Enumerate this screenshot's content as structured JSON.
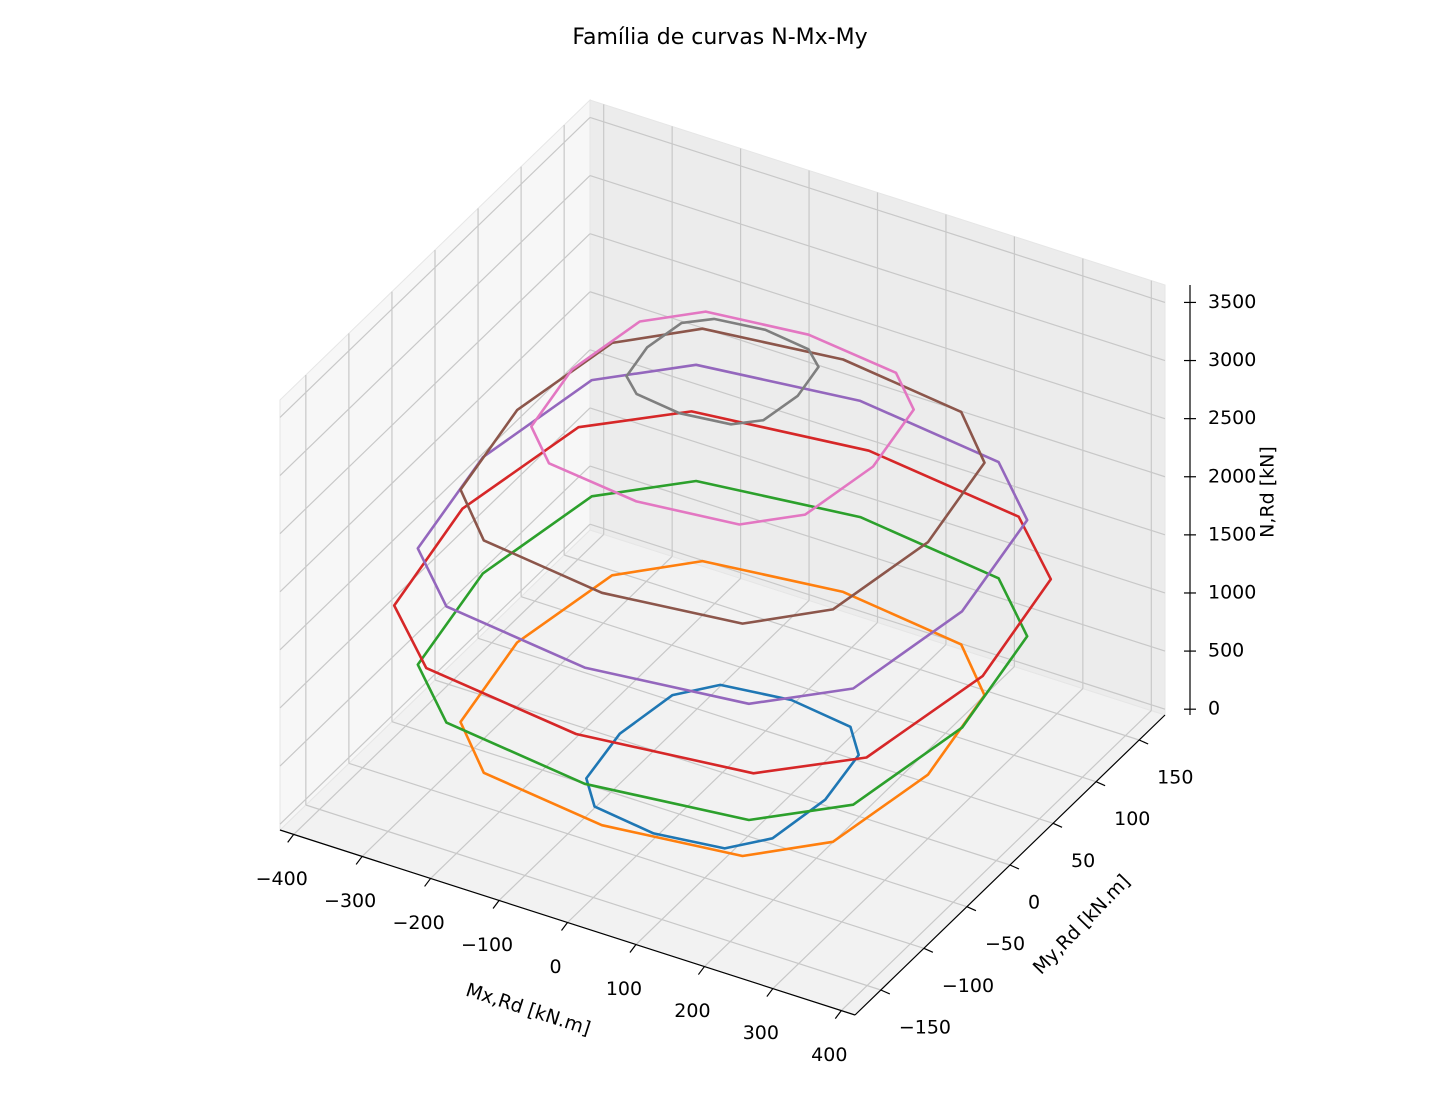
{
  "chart_data": {
    "type": "line3d",
    "title": "Família de curvas N-Mx-My",
    "xlabel": "Mx,Rd [kN.m]",
    "ylabel": "My,Rd [kN.m]",
    "zlabel": "N,Rd [kN]",
    "xlim": [
      -420,
      420
    ],
    "ylim": [
      -180,
      180
    ],
    "zlim": [
      -50,
      3650
    ],
    "xticks": [
      {
        "value": -400,
        "label": "−400"
      },
      {
        "value": -300,
        "label": "−300"
      },
      {
        "value": -200,
        "label": "−200"
      },
      {
        "value": -100,
        "label": "−100"
      },
      0,
      100,
      200,
      300,
      400
    ],
    "yticks": [
      {
        "value": -150,
        "label": "−150"
      },
      {
        "value": -100,
        "label": "−100"
      },
      {
        "value": -50,
        "label": "−50"
      },
      0,
      50,
      100,
      150
    ],
    "zticks": [
      0,
      500,
      1000,
      1500,
      2000,
      2500,
      3000,
      3500
    ],
    "grid": true,
    "series": [
      {
        "color": "#1f77b4",
        "n": 0,
        "mx": [
          150,
          136,
          95,
          0,
          -95,
          -136,
          -150,
          -136,
          -95,
          0,
          95,
          136
        ],
        "my": [
          0,
          50,
          73,
          80,
          73,
          50,
          0,
          -50,
          -73,
          -80,
          -73,
          -50
        ]
      },
      {
        "color": "#ff7f0e",
        "n": 500,
        "mx": [
          300,
          272,
          189,
          0,
          -189,
          -272,
          -300,
          -272,
          -189,
          0,
          189,
          272
        ],
        "my": [
          0,
          88,
          127,
          140,
          127,
          88,
          0,
          -88,
          -127,
          -140,
          -127,
          -88
        ]
      },
      {
        "color": "#2ca02c",
        "n": 1000,
        "mx": [
          350,
          318,
          221,
          0,
          -221,
          -318,
          -350,
          -318,
          -221,
          0,
          221,
          318
        ],
        "my": [
          0,
          101,
          145,
          160,
          145,
          101,
          0,
          -101,
          -145,
          -160,
          -145,
          -101
        ]
      },
      {
        "color": "#d62728",
        "n": 1500,
        "mx": [
          380,
          345,
          239,
          0,
          -239,
          -345,
          -380,
          -345,
          -239,
          0,
          239,
          345
        ],
        "my": [
          0,
          107,
          154,
          170,
          154,
          107,
          0,
          -107,
          -154,
          -170,
          -154,
          -107
        ]
      },
      {
        "color": "#9467bd",
        "n": 2000,
        "mx": [
          350,
          318,
          221,
          0,
          -221,
          -318,
          -350,
          -318,
          -221,
          0,
          221,
          318
        ],
        "my": [
          0,
          101,
          145,
          160,
          145,
          101,
          0,
          -101,
          -145,
          -160,
          -145,
          -101
        ]
      },
      {
        "color": "#8c564b",
        "n": 2500,
        "mx": [
          300,
          272,
          189,
          0,
          -189,
          -272,
          -300,
          -272,
          -189,
          0,
          189,
          272
        ],
        "my": [
          0,
          88,
          127,
          140,
          127,
          88,
          0,
          -88,
          -127,
          -140,
          -127,
          -88
        ]
      },
      {
        "color": "#e377c2",
        "n": 3000,
        "mx": [
          220,
          200,
          139,
          0,
          -139,
          -200,
          -220,
          -200,
          -139,
          0,
          139,
          200
        ],
        "my": [
          0,
          63,
          91,
          100,
          91,
          63,
          0,
          -63,
          -91,
          -100,
          -91,
          -63
        ]
      },
      {
        "color": "#7f7f7f",
        "n": 3400,
        "mx": [
          110,
          100,
          69,
          0,
          -69,
          -100,
          -110,
          -100,
          -69,
          0,
          69,
          100
        ],
        "my": [
          0,
          32,
          45,
          50,
          45,
          32,
          0,
          -32,
          -45,
          -50,
          -45,
          -32
        ]
      }
    ]
  }
}
